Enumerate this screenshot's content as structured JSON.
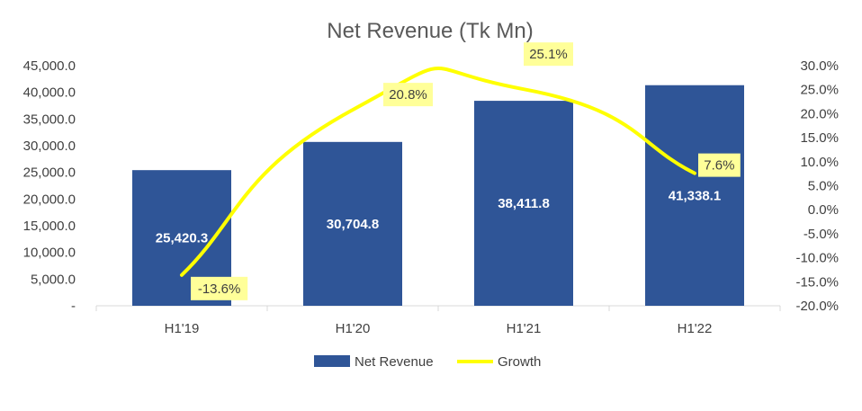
{
  "chart_data": {
    "type": "bar",
    "title": "Net Revenue (Tk Mn)",
    "categories": [
      "H1'19",
      "H1'20",
      "H1'21",
      "H1'22"
    ],
    "series": [
      {
        "name": "Net Revenue",
        "type": "bar",
        "axis": "left",
        "values": [
          25420.3,
          30704.8,
          38411.8,
          41338.1
        ],
        "labels": [
          "25,420.3",
          "30,704.8",
          "38,411.8",
          "41,338.1"
        ],
        "color": "#2F5597"
      },
      {
        "name": "Growth",
        "type": "line",
        "axis": "right",
        "smooth": true,
        "values": [
          -13.6,
          20.8,
          25.1,
          7.6
        ],
        "labels": [
          "-13.6%",
          "20.8%",
          "25.1%",
          "7.6%"
        ],
        "color": "#FFFF00"
      }
    ],
    "y_left": {
      "min": 0,
      "max": 45000,
      "step": 5000,
      "tick_labels": [
        "-",
        "5,000.0",
        "10,000.0",
        "15,000.0",
        "20,000.0",
        "25,000.0",
        "30,000.0",
        "35,000.0",
        "40,000.0",
        "45,000.0"
      ]
    },
    "y_right": {
      "min": -20,
      "max": 30,
      "step": 5,
      "tick_labels": [
        "-20.0%",
        "-15.0%",
        "-10.0%",
        "-5.0%",
        "0.0%",
        "5.0%",
        "10.0%",
        "15.0%",
        "20.0%",
        "25.0%",
        "30.0%"
      ]
    },
    "grid": false,
    "legend_position": "bottom",
    "label_box_color": "#FFFF99"
  }
}
